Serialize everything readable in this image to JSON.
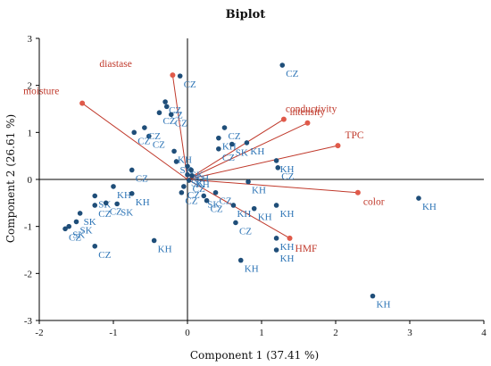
{
  "chart_data": {
    "type": "scatter",
    "subtype": "biplot",
    "title": "Biplot",
    "xlabel": "Component 1 (37.41 %)",
    "ylabel": "Component 2 (26.61 %)",
    "xlim": [
      -2,
      4
    ],
    "ylim": [
      -3,
      3
    ],
    "xticks": [
      -2,
      -1,
      0,
      1,
      2,
      3,
      4
    ],
    "yticks": [
      -3,
      -2,
      -1,
      0,
      1,
      2,
      3
    ],
    "grid": false,
    "colors": {
      "observation": "#2e75b6",
      "variable": "#c0392b",
      "variable_marker": "#e05a4a",
      "axis": "#000000"
    },
    "observations": [
      {
        "label": "CZ",
        "x": 1.28,
        "y": 2.43
      },
      {
        "label": "CZ",
        "x": -0.1,
        "y": 2.2
      },
      {
        "label": "CZ",
        "x": -0.3,
        "y": 1.65
      },
      {
        "label": "CZ",
        "x": -0.28,
        "y": 1.55
      },
      {
        "label": "CZ",
        "x": -0.38,
        "y": 1.42
      },
      {
        "label": "CZ",
        "x": -0.22,
        "y": 1.38
      },
      {
        "label": "CZ",
        "x": -0.72,
        "y": 1.0
      },
      {
        "label": "CZ",
        "x": -0.52,
        "y": 0.92
      },
      {
        "label": "CZ",
        "x": -0.58,
        "y": 1.1
      },
      {
        "label": "CZ",
        "x": -0.75,
        "y": 0.2
      },
      {
        "label": "SK",
        "x": -0.15,
        "y": 0.38
      },
      {
        "label": "KH",
        "x": -0.18,
        "y": 0.6
      },
      {
        "label": "SK",
        "x": 0.0,
        "y": 0.28
      },
      {
        "label": "KH",
        "x": 0.05,
        "y": 0.2
      },
      {
        "label": "CZ",
        "x": 0.5,
        "y": 1.1
      },
      {
        "label": "KH",
        "x": 0.42,
        "y": 0.88
      },
      {
        "label": "SK",
        "x": 0.6,
        "y": 0.75
      },
      {
        "label": "KH",
        "x": 0.8,
        "y": 0.78
      },
      {
        "label": "CZ",
        "x": 0.42,
        "y": 0.65
      },
      {
        "label": "KH",
        "x": 1.2,
        "y": 0.4
      },
      {
        "label": "CZ",
        "x": 1.22,
        "y": 0.25
      },
      {
        "label": "SK",
        "x": 0.0,
        "y": 0.1
      },
      {
        "label": "KH",
        "x": 0.06,
        "y": 0.08
      },
      {
        "label": "CZ",
        "x": 0.02,
        "y": -0.02
      },
      {
        "label": "KH",
        "x": 0.82,
        "y": -0.05
      },
      {
        "label": "CZ",
        "x": -0.05,
        "y": -0.15
      },
      {
        "label": "SK",
        "x": 0.22,
        "y": -0.35
      },
      {
        "label": "CZ",
        "x": 0.38,
        "y": -0.28
      },
      {
        "label": "CZ",
        "x": 0.26,
        "y": -0.45
      },
      {
        "label": "KH",
        "x": 0.62,
        "y": -0.55
      },
      {
        "label": "KH",
        "x": 0.9,
        "y": -0.62
      },
      {
        "label": "KH",
        "x": 1.2,
        "y": -0.55
      },
      {
        "label": "CZ",
        "x": 0.65,
        "y": -0.92
      },
      {
        "label": "KH",
        "x": 1.2,
        "y": -1.25
      },
      {
        "label": "KH",
        "x": 0.72,
        "y": -1.72
      },
      {
        "label": "KH",
        "x": 1.2,
        "y": -1.5
      },
      {
        "label": "KH",
        "x": 3.12,
        "y": -0.4
      },
      {
        "label": "KH",
        "x": 2.5,
        "y": -2.48
      },
      {
        "label": "KH",
        "x": -1.0,
        "y": -0.15
      },
      {
        "label": "SK",
        "x": -1.25,
        "y": -0.35
      },
      {
        "label": "CZ",
        "x": -1.1,
        "y": -0.5
      },
      {
        "label": "CZ",
        "x": -1.25,
        "y": -0.55
      },
      {
        "label": "SK",
        "x": -1.45,
        "y": -0.72
      },
      {
        "label": "SK",
        "x": -1.5,
        "y": -0.9
      },
      {
        "label": "CZ",
        "x": -1.65,
        "y": -1.05
      },
      {
        "label": "SK",
        "x": -1.6,
        "y": -1.0
      },
      {
        "label": "CZ",
        "x": -1.25,
        "y": -1.42
      },
      {
        "label": "KH",
        "x": -0.75,
        "y": -0.3
      },
      {
        "label": "SK",
        "x": -0.95,
        "y": -0.52
      },
      {
        "label": "KH",
        "x": -0.45,
        "y": -1.3
      },
      {
        "label": "CZ",
        "x": -0.08,
        "y": -0.28
      }
    ],
    "variables": [
      {
        "name": "diastase",
        "x": -0.2,
        "y": 2.22
      },
      {
        "name": "moisture",
        "x": -1.42,
        "y": 1.62
      },
      {
        "name": "conductivity",
        "x": 1.3,
        "y": 1.28
      },
      {
        "name": "intensity",
        "x": 1.62,
        "y": 1.2
      },
      {
        "name": "TPC",
        "x": 2.03,
        "y": 0.72
      },
      {
        "name": "color",
        "x": 2.3,
        "y": -0.28
      },
      {
        "name": "HMF",
        "x": 1.38,
        "y": -1.25
      }
    ]
  }
}
